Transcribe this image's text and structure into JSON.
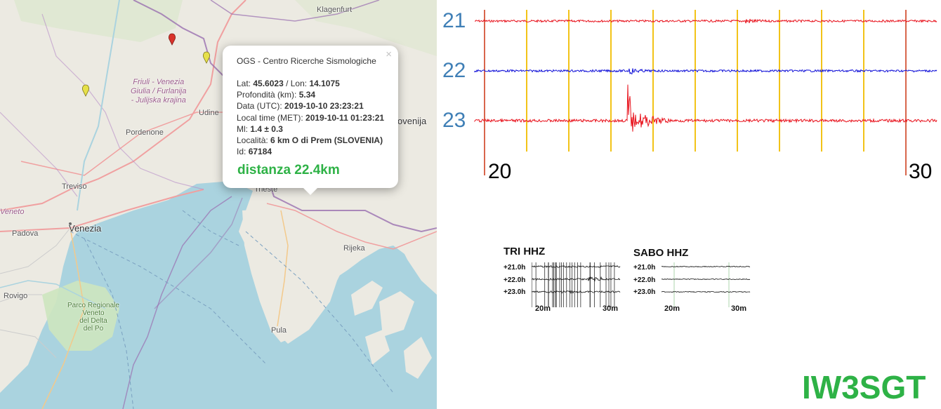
{
  "map": {
    "labels": {
      "klagenfurt": "Klagenfurt",
      "udine": "Udine",
      "pordenone": "Pordenone",
      "treviso": "Treviso",
      "venezia": "Venezia",
      "veneto": "Veneto",
      "padova": "Padova",
      "rovigo": "Rovigo",
      "trieste": "Trieste",
      "rijeka": "Rijeka",
      "pula": "Pula",
      "slovenija": "ovenija",
      "region_fvg_1": "Friuli - Venezia",
      "region_fvg_2": "Giulia / Furlanija",
      "region_fvg_3": "- Julijska krajina",
      "park_1": "Parco Regionale",
      "park_2": "Veneto",
      "park_3": "del Delta",
      "park_4": "del Po"
    },
    "markers": [
      {
        "color": "#d9332b"
      },
      {
        "color": "#e6e04a"
      },
      {
        "color": "#e6e04a"
      }
    ],
    "colors": {
      "sea": "#aad3df",
      "land": "#eceae2",
      "border": "#9a6fb0",
      "road": "#f0a0a0"
    }
  },
  "popup": {
    "close": "×",
    "title": "OGS - Centro Ricerche Sismologiche",
    "lat_label": "Lat: ",
    "lat": "45.6023",
    "lon_label": " / Lon: ",
    "lon": "14.1075",
    "depth_label": "Profondità (km): ",
    "depth": "5.34",
    "date_label": "Data (UTC): ",
    "date": "2019-10-10 23:23:21",
    "local_label": "Local time (MET): ",
    "local": "2019-10-11 01:23:21",
    "ml_label": "Ml: ",
    "ml": "1.4 ± 0.3",
    "loc_label": "Località: ",
    "loc": "6 km O di Prem (SLOVENIA)",
    "id_label": "Id: ",
    "id": "67184",
    "distance": "distanza 22.4km"
  },
  "seismogram": {
    "hours": [
      "21",
      "22",
      "23"
    ],
    "minute_start": "20",
    "minute_end": "30",
    "colors": {
      "trace_a": "#e8111b",
      "trace_b": "#1010d8",
      "minute_tick": "#f2c318",
      "marker": "#cc3311",
      "hour_label": "#3f7fb6"
    }
  },
  "thumbnails": [
    {
      "title": "TRI HHZ",
      "hours": [
        "+21.0h",
        "+22.0h",
        "+23.0h"
      ],
      "minutes": [
        "20m",
        "30m"
      ]
    },
    {
      "title": "SABO HHZ",
      "hours": [
        "+21.0h",
        "+22.0h",
        "+23.0h"
      ],
      "minutes": [
        "20m",
        "30m"
      ]
    }
  ],
  "callsign": "IW3SGT"
}
